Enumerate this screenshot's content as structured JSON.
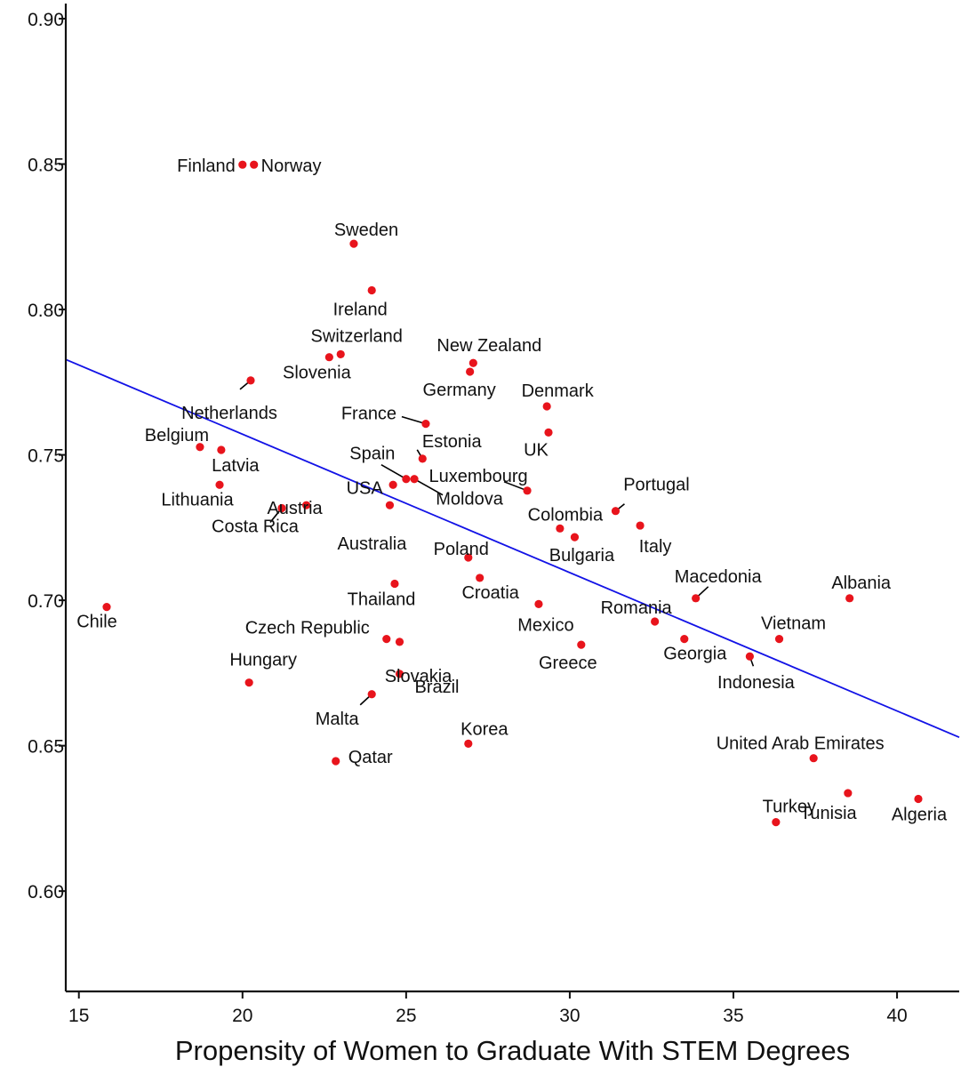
{
  "chart_data": {
    "type": "scatter",
    "title": "",
    "xlabel": "Propensity of Women to Graduate With STEM Degrees",
    "ylabel": "",
    "xlim": [
      14.6,
      41.9
    ],
    "ylim": [
      0.5655,
      0.9052
    ],
    "x_ticks": [
      15,
      20,
      25,
      30,
      35,
      40
    ],
    "x_tick_labels": [
      "15",
      "20",
      "25",
      "30",
      "35",
      "40"
    ],
    "y_ticks": [
      0.6,
      0.65,
      0.7,
      0.75,
      0.8,
      0.85,
      0.9
    ],
    "y_tick_labels": [
      "0.60",
      "0.65",
      "0.70",
      "0.75",
      "0.80",
      "0.85",
      "0.90"
    ],
    "grid": false,
    "point_color": "#e8141c",
    "line_color": "#1212e6",
    "axis_color": "#111111",
    "fit_line": {
      "x": [
        14.6,
        41.9
      ],
      "y": [
        0.7828,
        0.6529
      ]
    },
    "points": [
      {
        "label": "Finland",
        "x": 20.0,
        "y": 0.8498
      },
      {
        "label": "Norway",
        "x": 20.35,
        "y": 0.8498
      },
      {
        "label": "Sweden",
        "x": 23.4,
        "y": 0.8226
      },
      {
        "label": "Ireland",
        "x": 23.95,
        "y": 0.8066
      },
      {
        "label": "Switzerland",
        "x": 23.0,
        "y": 0.7846
      },
      {
        "label": "Slovenia",
        "x": 22.65,
        "y": 0.7836
      },
      {
        "label": "New Zealand",
        "x": 27.05,
        "y": 0.7816
      },
      {
        "label": "Germany",
        "x": 26.95,
        "y": 0.7786
      },
      {
        "label": "Netherlands",
        "x": 20.25,
        "y": 0.7756
      },
      {
        "label": "Denmark",
        "x": 29.3,
        "y": 0.7667
      },
      {
        "label": "France",
        "x": 25.6,
        "y": 0.7607
      },
      {
        "label": "UK",
        "x": 29.35,
        "y": 0.7577
      },
      {
        "label": "Belgium",
        "x": 18.7,
        "y": 0.7527
      },
      {
        "label": "Latvia",
        "x": 19.35,
        "y": 0.7517
      },
      {
        "label": "Estonia",
        "x": 25.5,
        "y": 0.7487
      },
      {
        "label": "Spain",
        "x": 25.0,
        "y": 0.7417
      },
      {
        "label": "Moldova",
        "x": 25.25,
        "y": 0.7417
      },
      {
        "label": "Lithuania",
        "x": 19.3,
        "y": 0.7397
      },
      {
        "label": "USA",
        "x": 24.6,
        "y": 0.7397
      },
      {
        "label": "Luxembourg",
        "x": 28.7,
        "y": 0.7377
      },
      {
        "label": "Australia",
        "x": 24.5,
        "y": 0.7327
      },
      {
        "label": "Austria",
        "x": 21.95,
        "y": 0.7327
      },
      {
        "label": "Costa Rica",
        "x": 21.2,
        "y": 0.7317
      },
      {
        "label": "Portugal",
        "x": 31.4,
        "y": 0.7307
      },
      {
        "label": "Italy",
        "x": 32.15,
        "y": 0.7257
      },
      {
        "label": "Colombia",
        "x": 29.7,
        "y": 0.7247
      },
      {
        "label": "Bulgaria",
        "x": 30.15,
        "y": 0.7217
      },
      {
        "label": "Poland",
        "x": 26.9,
        "y": 0.7147
      },
      {
        "label": "Croatia",
        "x": 27.25,
        "y": 0.7077
      },
      {
        "label": "Thailand",
        "x": 24.65,
        "y": 0.7057
      },
      {
        "label": "Macedonia",
        "x": 33.85,
        "y": 0.7007
      },
      {
        "label": "Albania",
        "x": 38.55,
        "y": 0.7007
      },
      {
        "label": "Mexico",
        "x": 29.05,
        "y": 0.6987
      },
      {
        "label": "Chile",
        "x": 15.85,
        "y": 0.6977
      },
      {
        "label": "Romania",
        "x": 32.6,
        "y": 0.6927
      },
      {
        "label": "Czech Republic",
        "x": 24.4,
        "y": 0.6867
      },
      {
        "label": "Georgia",
        "x": 33.5,
        "y": 0.6867
      },
      {
        "label": "Vietnam",
        "x": 36.4,
        "y": 0.6867
      },
      {
        "label": "Brazil",
        "x": 24.8,
        "y": 0.6857
      },
      {
        "label": "Greece",
        "x": 30.35,
        "y": 0.6847
      },
      {
        "label": "Indonesia",
        "x": 35.5,
        "y": 0.6807
      },
      {
        "label": "Slovakia",
        "x": 24.8,
        "y": 0.6747
      },
      {
        "label": "Hungary",
        "x": 20.2,
        "y": 0.6717
      },
      {
        "label": "Malta",
        "x": 23.95,
        "y": 0.6677
      },
      {
        "label": "Korea",
        "x": 26.9,
        "y": 0.6507
      },
      {
        "label": "United Arab Emirates",
        "x": 37.45,
        "y": 0.6457
      },
      {
        "label": "Qatar",
        "x": 22.85,
        "y": 0.6447
      },
      {
        "label": "Tunisia",
        "x": 38.5,
        "y": 0.6337
      },
      {
        "label": "Algeria",
        "x": 40.65,
        "y": 0.6317
      },
      {
        "label": "Turkey",
        "x": 36.3,
        "y": 0.6237
      }
    ]
  }
}
